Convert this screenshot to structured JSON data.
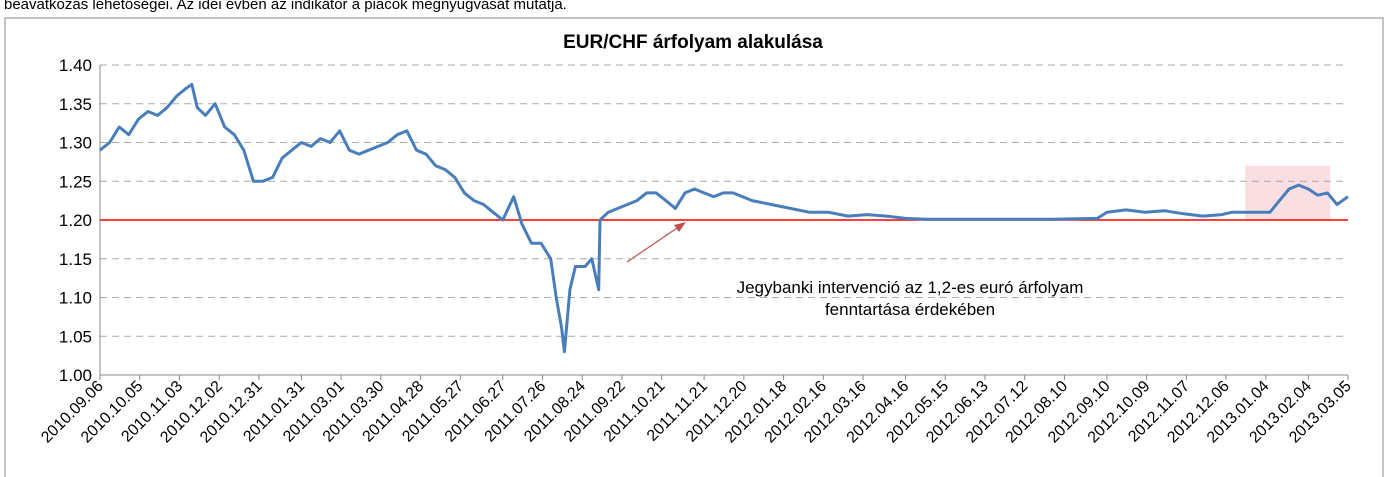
{
  "caption_above": "beavatkozás lehetőségei. Az idei évben az indikátor a piacok megnyugvását mutatja.",
  "chart_data": {
    "type": "line",
    "title": "EUR/CHF árfolyam alakulása",
    "x": [
      "2010.09.06",
      "2010.09.13",
      "2010.09.20",
      "2010.09.27",
      "2010.10.04",
      "2010.10.11",
      "2010.10.18",
      "2010.10.25",
      "2010.11.01",
      "2010.11.08",
      "2010.11.12",
      "2010.11.16",
      "2010.11.22",
      "2010.11.29",
      "2010.12.06",
      "2010.12.13",
      "2010.12.20",
      "2010.12.27",
      "2011.01.03",
      "2011.01.10",
      "2011.01.17",
      "2011.01.24",
      "2011.01.31",
      "2011.02.07",
      "2011.02.14",
      "2011.02.21",
      "2011.02.28",
      "2011.03.07",
      "2011.03.14",
      "2011.03.21",
      "2011.03.28",
      "2011.04.04",
      "2011.04.11",
      "2011.04.18",
      "2011.04.25",
      "2011.05.02",
      "2011.05.09",
      "2011.05.16",
      "2011.05.23",
      "2011.05.30",
      "2011.06.06",
      "2011.06.13",
      "2011.06.20",
      "2011.06.27",
      "2011.07.01",
      "2011.07.05",
      "2011.07.11",
      "2011.07.18",
      "2011.07.25",
      "2011.08.01",
      "2011.08.05",
      "2011.08.09",
      "2011.08.11",
      "2011.08.15",
      "2011.08.19",
      "2011.08.26",
      "2011.08.31",
      "2011.09.05",
      "2011.09.06",
      "2011.09.12",
      "2011.09.19",
      "2011.09.26",
      "2011.10.03",
      "2011.10.10",
      "2011.10.17",
      "2011.10.24",
      "2011.10.31",
      "2011.11.07",
      "2011.11.14",
      "2011.11.21",
      "2011.11.28",
      "2011.12.05",
      "2011.12.12",
      "2011.12.19",
      "2011.12.26",
      "2012.01.09",
      "2012.01.23",
      "2012.02.06",
      "2012.02.20",
      "2012.03.05",
      "2012.03.19",
      "2012.04.02",
      "2012.04.16",
      "2012.05.01",
      "2012.06.01",
      "2012.07.02",
      "2012.08.01",
      "2012.09.03",
      "2012.09.10",
      "2012.09.24",
      "2012.10.08",
      "2012.10.22",
      "2012.11.05",
      "2012.11.19",
      "2012.12.03",
      "2012.12.10",
      "2012.12.24",
      "2013.01.07",
      "2013.01.14",
      "2013.01.21",
      "2013.01.28",
      "2013.02.04",
      "2013.02.11",
      "2013.02.18",
      "2013.02.25",
      "2013.03.05"
    ],
    "series": [
      {
        "name": "EUR/CHF",
        "color": "#4a7ebb",
        "values": [
          1.29,
          1.3,
          1.32,
          1.31,
          1.33,
          1.34,
          1.335,
          1.345,
          1.36,
          1.37,
          1.375,
          1.345,
          1.335,
          1.35,
          1.32,
          1.31,
          1.29,
          1.25,
          1.25,
          1.255,
          1.28,
          1.29,
          1.3,
          1.295,
          1.305,
          1.3,
          1.315,
          1.29,
          1.285,
          1.29,
          1.295,
          1.3,
          1.31,
          1.315,
          1.29,
          1.285,
          1.27,
          1.265,
          1.255,
          1.235,
          1.225,
          1.22,
          1.21,
          1.2,
          1.215,
          1.23,
          1.195,
          1.17,
          1.17,
          1.15,
          1.1,
          1.06,
          1.03,
          1.11,
          1.14,
          1.14,
          1.15,
          1.11,
          1.2,
          1.21,
          1.215,
          1.22,
          1.225,
          1.235,
          1.235,
          1.225,
          1.215,
          1.235,
          1.24,
          1.235,
          1.23,
          1.235,
          1.235,
          1.23,
          1.225,
          1.22,
          1.215,
          1.21,
          1.21,
          1.205,
          1.207,
          1.205,
          1.202,
          1.201,
          1.201,
          1.201,
          1.201,
          1.202,
          1.21,
          1.213,
          1.21,
          1.212,
          1.208,
          1.205,
          1.207,
          1.21,
          1.21,
          1.21,
          1.225,
          1.24,
          1.245,
          1.24,
          1.232,
          1.235,
          1.22,
          1.23
        ]
      }
    ],
    "xlim": [
      "2010.09.06",
      "2013.03.05"
    ],
    "xticks": [
      "2010.09.06",
      "2010.10.05",
      "2010.11.03",
      "2010.12.02",
      "2010.12.31",
      "2011.01.31",
      "2011.03.01",
      "2011.03.30",
      "2011.04.28",
      "2011.05.27",
      "2011.06.27",
      "2011.07.26",
      "2011.08.24",
      "2011.09.22",
      "2011.10.21",
      "2011.11.21",
      "2011.12.20",
      "2012.01.18",
      "2012.02.16",
      "2012.03.16",
      "2012.04.16",
      "2012.05.15",
      "2012.06.13",
      "2012.07.12",
      "2012.08.10",
      "2012.09.10",
      "2012.10.09",
      "2012.11.07",
      "2012.12.06",
      "2013.01.04",
      "2013.02.04",
      "2013.03.05"
    ],
    "ylim": [
      1,
      1.4
    ],
    "yticks": [
      {
        "value": 1,
        "label": "1.00"
      },
      {
        "value": 1.05,
        "label": "1.05"
      },
      {
        "value": 1.1,
        "label": "1.10"
      },
      {
        "value": 1.15,
        "label": "1.15"
      },
      {
        "value": 1.2,
        "label": "1.20"
      },
      {
        "value": 1.25,
        "label": "1.25"
      },
      {
        "value": 1.3,
        "label": "1.30"
      },
      {
        "value": 1.35,
        "label": "1.35"
      },
      {
        "value": 1.4,
        "label": "1.40"
      }
    ],
    "grid": true,
    "reference_line": {
      "value": 1.2,
      "color": "#ff0000"
    },
    "highlight": {
      "x": [
        "2012.12.20",
        "2013.02.20"
      ],
      "y": [
        1.2,
        1.27
      ],
      "color": "#f8d7da"
    },
    "annotation": [
      "Jegybanki intervenció az 1,2-es euró árfolyam",
      "fenntartása érdekében"
    ]
  }
}
